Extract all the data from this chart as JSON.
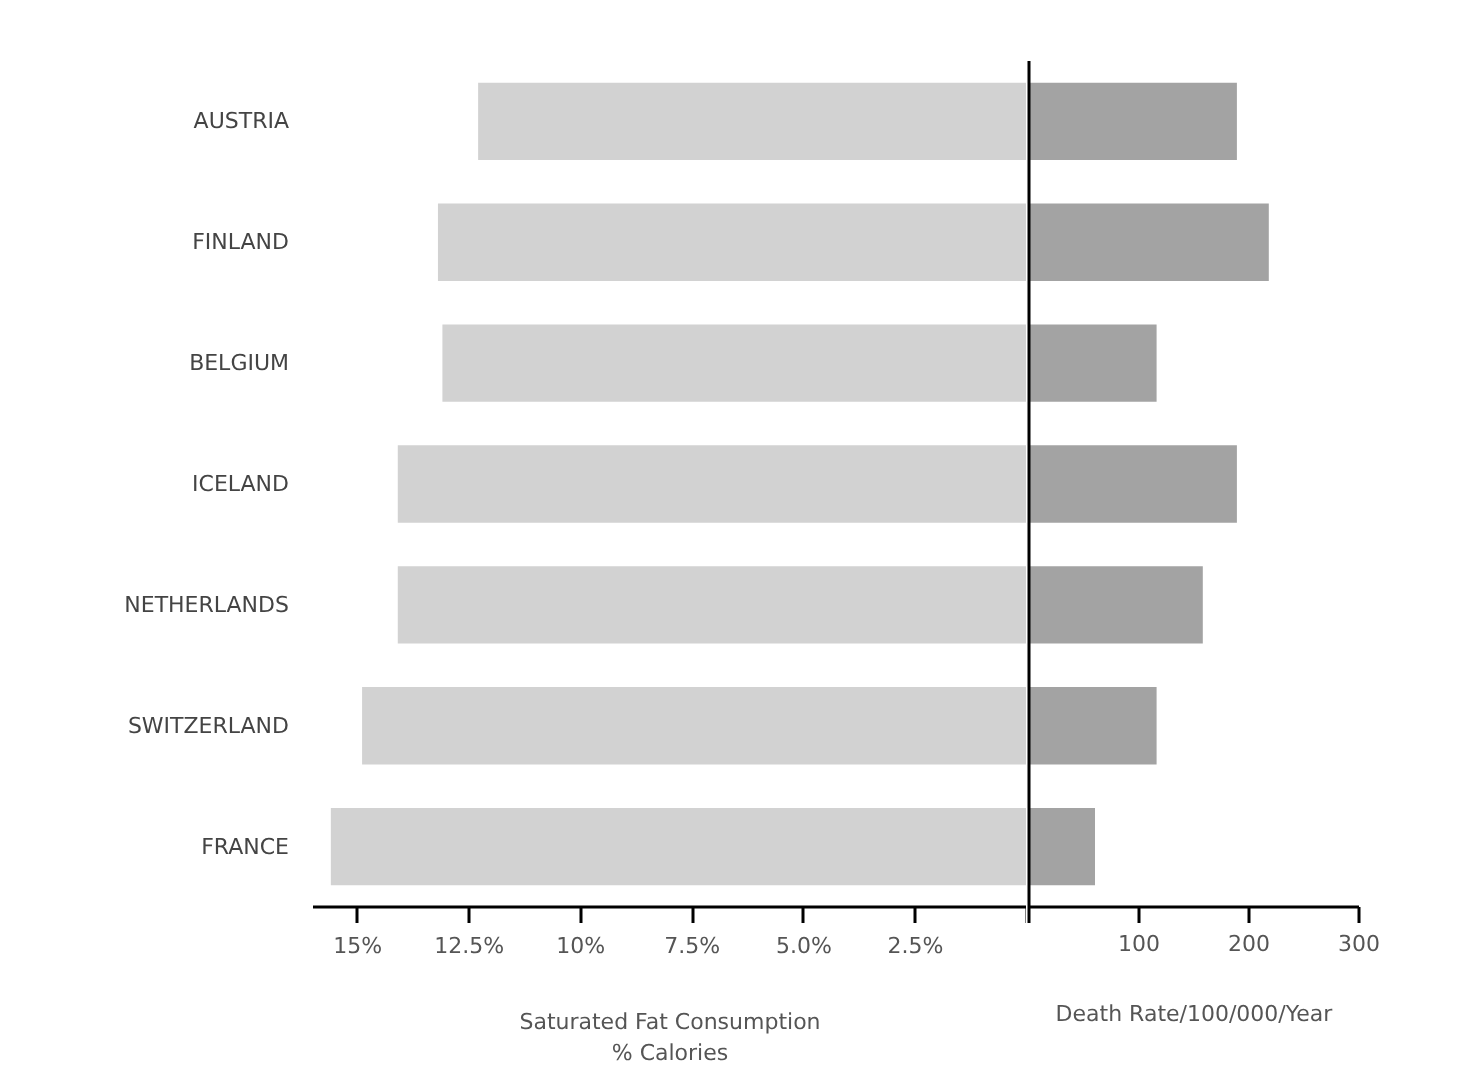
{
  "chart_data": [
    {
      "type": "bar",
      "orientation": "horizontal",
      "categories": [
        "AUSTRIA",
        "FINLAND",
        "BELGIUM",
        "ICELAND",
        "NETHERLANDS",
        "SWITZERLAND",
        "FRANCE"
      ],
      "values": [
        12.3,
        13.2,
        13.1,
        14.1,
        14.1,
        14.9,
        15.6
      ],
      "color": "#d2d2d2",
      "xlim": [
        16,
        0
      ],
      "xticks": [
        {
          "value": 15,
          "label": "15%"
        },
        {
          "value": 12.5,
          "label": "12.5%"
        },
        {
          "value": 10,
          "label": "10%"
        },
        {
          "value": 7.5,
          "label": "7.5%"
        },
        {
          "value": 5,
          "label": "5.0%"
        },
        {
          "value": 2.5,
          "label": "2.5%"
        },
        {
          "value": 0,
          "label": null
        }
      ],
      "xlabel": "Saturated Fat Consumption\n% Calories",
      "grid": false
    },
    {
      "type": "bar",
      "orientation": "horizontal",
      "values": [
        189,
        218,
        116,
        189,
        158,
        116,
        60
      ],
      "color": "#a3a3a3",
      "xlim": [
        0,
        300
      ],
      "xticks": [
        {
          "value": 0,
          "label": null
        },
        100,
        200,
        300
      ],
      "xlabel": "Death Rate/100/000/Year",
      "tick_labels": "x",
      "grid": false
    }
  ]
}
